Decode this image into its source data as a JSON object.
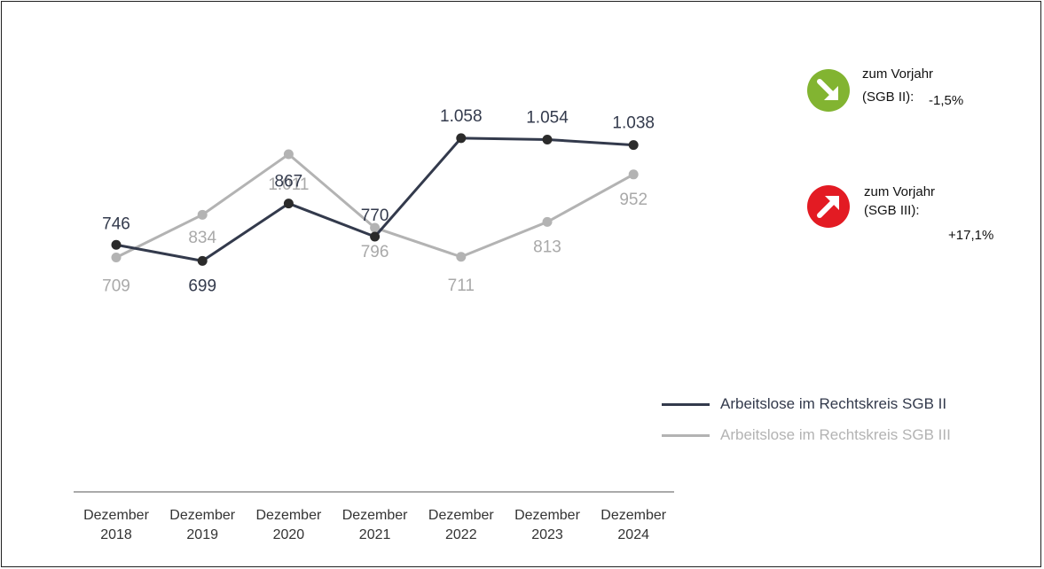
{
  "chart_data": {
    "type": "line",
    "categories": [
      [
        "Dezember",
        "2018"
      ],
      [
        "Dezember",
        "2019"
      ],
      [
        "Dezember",
        "2020"
      ],
      [
        "Dezember",
        "2021"
      ],
      [
        "Dezember",
        "2022"
      ],
      [
        "Dezember",
        "2023"
      ],
      [
        "Dezember",
        "2024"
      ]
    ],
    "series": [
      {
        "name": "Arbeitslose im Rechtskreis SGB II",
        "color": "#333a4c",
        "values": [
          746,
          699,
          867,
          770,
          1058,
          1054,
          1038
        ],
        "labels": [
          "746",
          "699",
          "867",
          "770",
          "1.058",
          "1.054",
          "1.038"
        ]
      },
      {
        "name": "Arbeitslose im Rechtskreis SGB III",
        "color": "#b3b3b3",
        "values": [
          709,
          834,
          1011,
          796,
          711,
          813,
          952
        ],
        "labels": [
          "709",
          "834",
          "1.011",
          "796",
          "711",
          "813",
          "952"
        ]
      }
    ],
    "legend_position": "right",
    "grid": false
  },
  "indicators": [
    {
      "direction": "down",
      "color": "#82b431",
      "icon": "arrow-down-right-icon",
      "line1": "zum Vorjahr",
      "line2": "(SGB II):",
      "value": "-1,5%"
    },
    {
      "direction": "up",
      "color": "#e31b23",
      "icon": "arrow-up-right-icon",
      "line1": "zum Vorjahr",
      "line2": "(SGB III):",
      "value": "+17,1%"
    }
  ]
}
